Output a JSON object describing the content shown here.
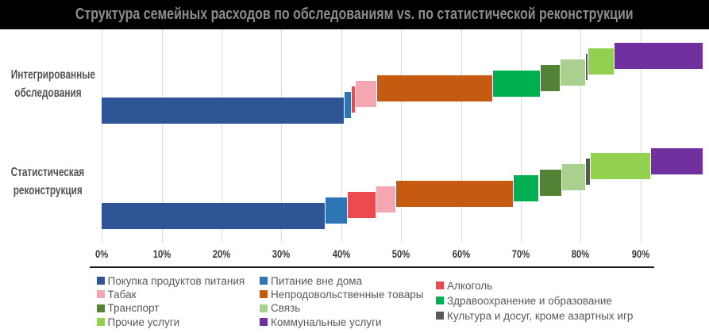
{
  "title": "Структура семейных расходов по обследованиям vs. по статистической реконструкции",
  "chart_data": {
    "type": "bar",
    "variant": "horizontal-cascade-stacked",
    "title": "Структура семейных расходов по обследованиям vs. по статистической реконструкции",
    "categories": [
      "Интегрированные обследования",
      "Статистическая реконструкция"
    ],
    "category_labels_lines": [
      [
        "Интегрированные",
        "обследования"
      ],
      [
        "Статистическая",
        "реконструкция"
      ]
    ],
    "series": [
      {
        "name": "Покупка продуктов питания",
        "color": "#2F5597",
        "values": [
          40.4,
          37.3
        ]
      },
      {
        "name": "Питание вне дома",
        "color": "#2E75B6",
        "values": [
          1.2,
          3.7
        ]
      },
      {
        "name": "Алкоголь",
        "color": "#EB4A51",
        "values": [
          0.7,
          4.8
        ]
      },
      {
        "name": "Табак",
        "color": "#F5A7B1",
        "values": [
          3.6,
          3.2
        ]
      },
      {
        "name": "Непродовольственные товары",
        "color": "#C55A11",
        "values": [
          19.4,
          19.7
        ]
      },
      {
        "name": "Здравоохранение и образование",
        "color": "#00B050",
        "values": [
          7.9,
          4.3
        ]
      },
      {
        "name": "Транспорт",
        "color": "#538135",
        "values": [
          3.3,
          3.8
        ]
      },
      {
        "name": "Связь",
        "color": "#A9D08E",
        "values": [
          4.3,
          4.0
        ]
      },
      {
        "name": "Культура и досуг, кроме азартных игр",
        "color": "#595959",
        "values": [
          0.4,
          0.7
        ]
      },
      {
        "name": "Прочие услуги",
        "color": "#92D050",
        "values": [
          4.3,
          10.2
        ]
      },
      {
        "name": "Коммунальные услуги",
        "color": "#7030A0",
        "values": [
          14.9,
          8.7
        ]
      }
    ],
    "x_ticks": [
      "0%",
      "10%",
      "20%",
      "30%",
      "40%",
      "50%",
      "60%",
      "70%",
      "80%",
      "90%"
    ],
    "xlim": [
      0,
      100.4
    ],
    "grid": "vertical",
    "legend_position": "bottom"
  },
  "legend_columns": [
    [
      0,
      3,
      6,
      9
    ],
    [
      1,
      4,
      7,
      10
    ],
    [
      2,
      5,
      8
    ]
  ]
}
